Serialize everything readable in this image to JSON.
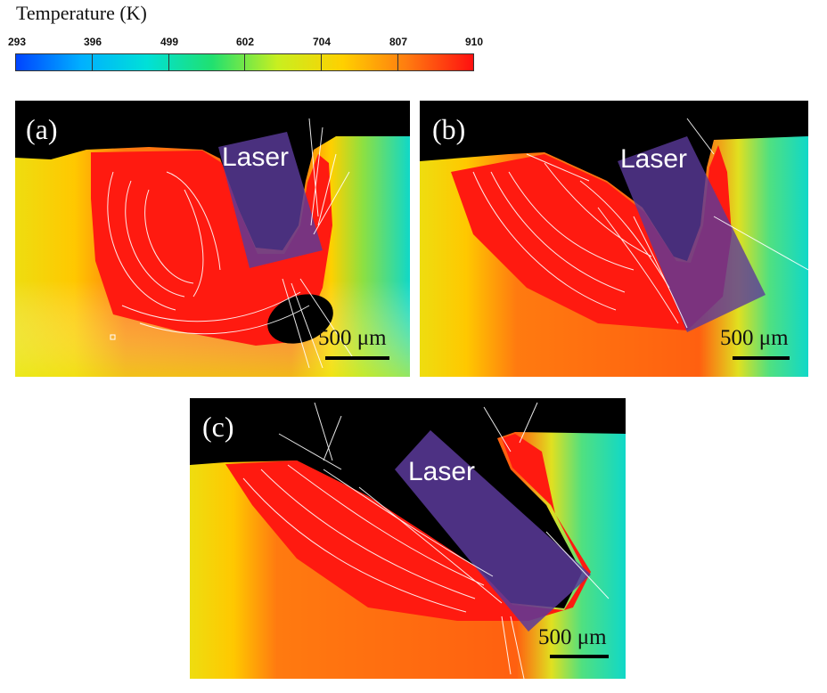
{
  "colorbar": {
    "title": "Temperature (K)",
    "ticks": [
      "293",
      "396",
      "499",
      "602",
      "704",
      "807",
      "910"
    ],
    "min": 293,
    "max": 910,
    "colors": [
      "#0044ff",
      "#00b0ff",
      "#00e0d8",
      "#20e070",
      "#c8ef20",
      "#ffd000",
      "#ff7a10",
      "#ff1010"
    ]
  },
  "panels": [
    {
      "label": "(a)",
      "laser": "Laser",
      "scale": "500 μm"
    },
    {
      "label": "(b)",
      "laser": "Laser",
      "scale": "500 μm"
    },
    {
      "label": "(c)",
      "laser": "Laser",
      "scale": "500 μm"
    }
  ]
}
